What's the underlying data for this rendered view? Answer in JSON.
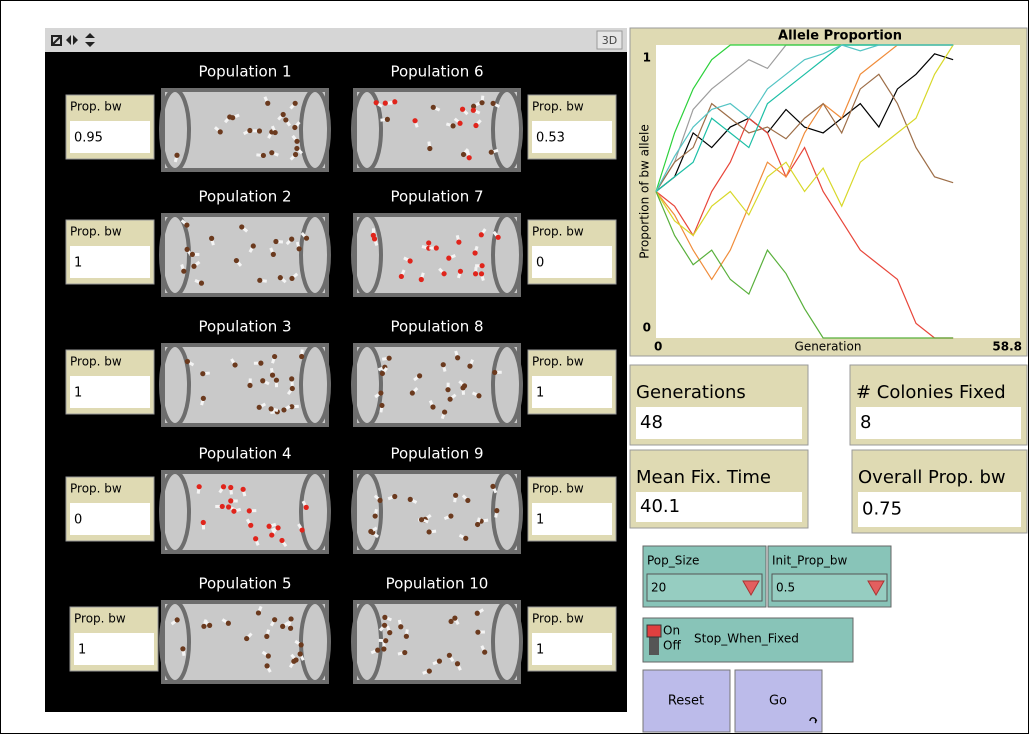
{
  "world": {
    "toolbar_button": "3D",
    "populations": [
      {
        "label": "Population 1",
        "monitor_label": "Prop. bw",
        "value": 0.95
      },
      {
        "label": "Population 2",
        "monitor_label": "Prop. bw",
        "value": 1
      },
      {
        "label": "Population 3",
        "monitor_label": "Prop. bw",
        "value": 1
      },
      {
        "label": "Population 4",
        "monitor_label": "Prop. bw",
        "value": 0
      },
      {
        "label": "Population 5",
        "monitor_label": "Prop. bw",
        "value": 1
      },
      {
        "label": "Population 6",
        "monitor_label": "Prop. bw",
        "value": 0.53
      },
      {
        "label": "Population 7",
        "monitor_label": "Prop. bw",
        "value": 0
      },
      {
        "label": "Population 8",
        "monitor_label": "Prop. bw",
        "value": 1
      },
      {
        "label": "Population 9",
        "monitor_label": "Prop. bw",
        "value": 1
      },
      {
        "label": "Population 10",
        "monitor_label": "Prop. bw",
        "value": 1
      }
    ]
  },
  "plot": {
    "title": "Allele Proportion",
    "y_label": "Proportion of bw allele",
    "x_label": "Generation",
    "xlim": [
      0,
      58.8
    ],
    "ylim": [
      0,
      1
    ],
    "xticks": [
      0,
      58.8
    ],
    "yticks": [
      0,
      1
    ],
    "x": [
      0,
      3,
      6,
      9,
      12,
      15,
      18,
      21,
      24,
      27,
      30,
      33,
      36,
      39,
      42,
      45,
      48
    ],
    "series": [
      {
        "color": "#000000",
        "values": [
          0.5,
          0.55,
          0.7,
          0.65,
          0.72,
          0.75,
          0.7,
          0.78,
          0.72,
          0.7,
          0.75,
          0.8,
          0.72,
          0.85,
          0.9,
          0.97,
          0.95
        ]
      },
      {
        "color": "#9d9d9d",
        "values": [
          0.5,
          0.6,
          0.78,
          0.85,
          0.9,
          0.95,
          0.92,
          1,
          1,
          1,
          1,
          1,
          1,
          1,
          1,
          1,
          1
        ]
      },
      {
        "color": "#e8463a",
        "values": [
          0.5,
          0.45,
          0.35,
          0.5,
          0.6,
          0.75,
          0.7,
          0.55,
          0.65,
          0.5,
          0.4,
          0.3,
          0.25,
          0.2,
          0.05,
          0,
          0
        ]
      },
      {
        "color": "#f08c3a",
        "values": [
          0.5,
          0.42,
          0.3,
          0.2,
          0.3,
          0.45,
          0.6,
          0.55,
          0.7,
          0.8,
          0.75,
          0.9,
          0.95,
          1,
          1,
          1,
          1
        ]
      },
      {
        "color": "#9d6e48",
        "values": [
          0.5,
          0.6,
          0.65,
          0.8,
          0.75,
          0.7,
          0.72,
          0.68,
          0.75,
          0.8,
          0.7,
          0.85,
          0.9,
          0.8,
          0.65,
          0.55,
          0.53
        ]
      },
      {
        "color": "#d8d82a",
        "values": [
          0.5,
          0.4,
          0.35,
          0.45,
          0.5,
          0.42,
          0.55,
          0.6,
          0.5,
          0.58,
          0.45,
          0.6,
          0.65,
          0.7,
          0.75,
          0.9,
          1
        ]
      },
      {
        "color": "#59b03c",
        "values": [
          0.5,
          0.35,
          0.25,
          0.3,
          0.2,
          0.15,
          0.3,
          0.22,
          0.1,
          0,
          0,
          0,
          0,
          0,
          0,
          0,
          0
        ]
      },
      {
        "color": "#2cd13b",
        "values": [
          0.5,
          0.7,
          0.85,
          0.95,
          1,
          1,
          1,
          1,
          1,
          1,
          1,
          1,
          1,
          1,
          1,
          1,
          1
        ]
      },
      {
        "color": "#1dbfa6",
        "values": [
          0.5,
          0.55,
          0.6,
          0.75,
          0.7,
          0.65,
          0.8,
          0.85,
          0.9,
          0.95,
          1,
          1,
          1,
          1,
          1,
          1,
          1
        ]
      },
      {
        "color": "#54c4c4",
        "values": [
          0.5,
          0.62,
          0.72,
          0.78,
          0.8,
          0.75,
          0.85,
          0.9,
          0.95,
          0.97,
          1,
          0.98,
          1,
          1,
          1,
          1,
          1
        ]
      }
    ]
  },
  "monitors": [
    {
      "label": "Generations",
      "value": 48
    },
    {
      "label": "# Colonies Fixed",
      "value": 8
    },
    {
      "label": "Mean Fix. Time",
      "value": 40.1
    },
    {
      "label": "Overall Prop. bw",
      "value": 0.75
    }
  ],
  "choosers": [
    {
      "label": "Pop_Size",
      "value": 20
    },
    {
      "label": "Init_Prop_bw",
      "value": 0.5
    }
  ],
  "switch": {
    "on": "On",
    "off": "Off",
    "label": "Stop_When_Fixed"
  },
  "buttons": [
    "Reset",
    "Go"
  ]
}
